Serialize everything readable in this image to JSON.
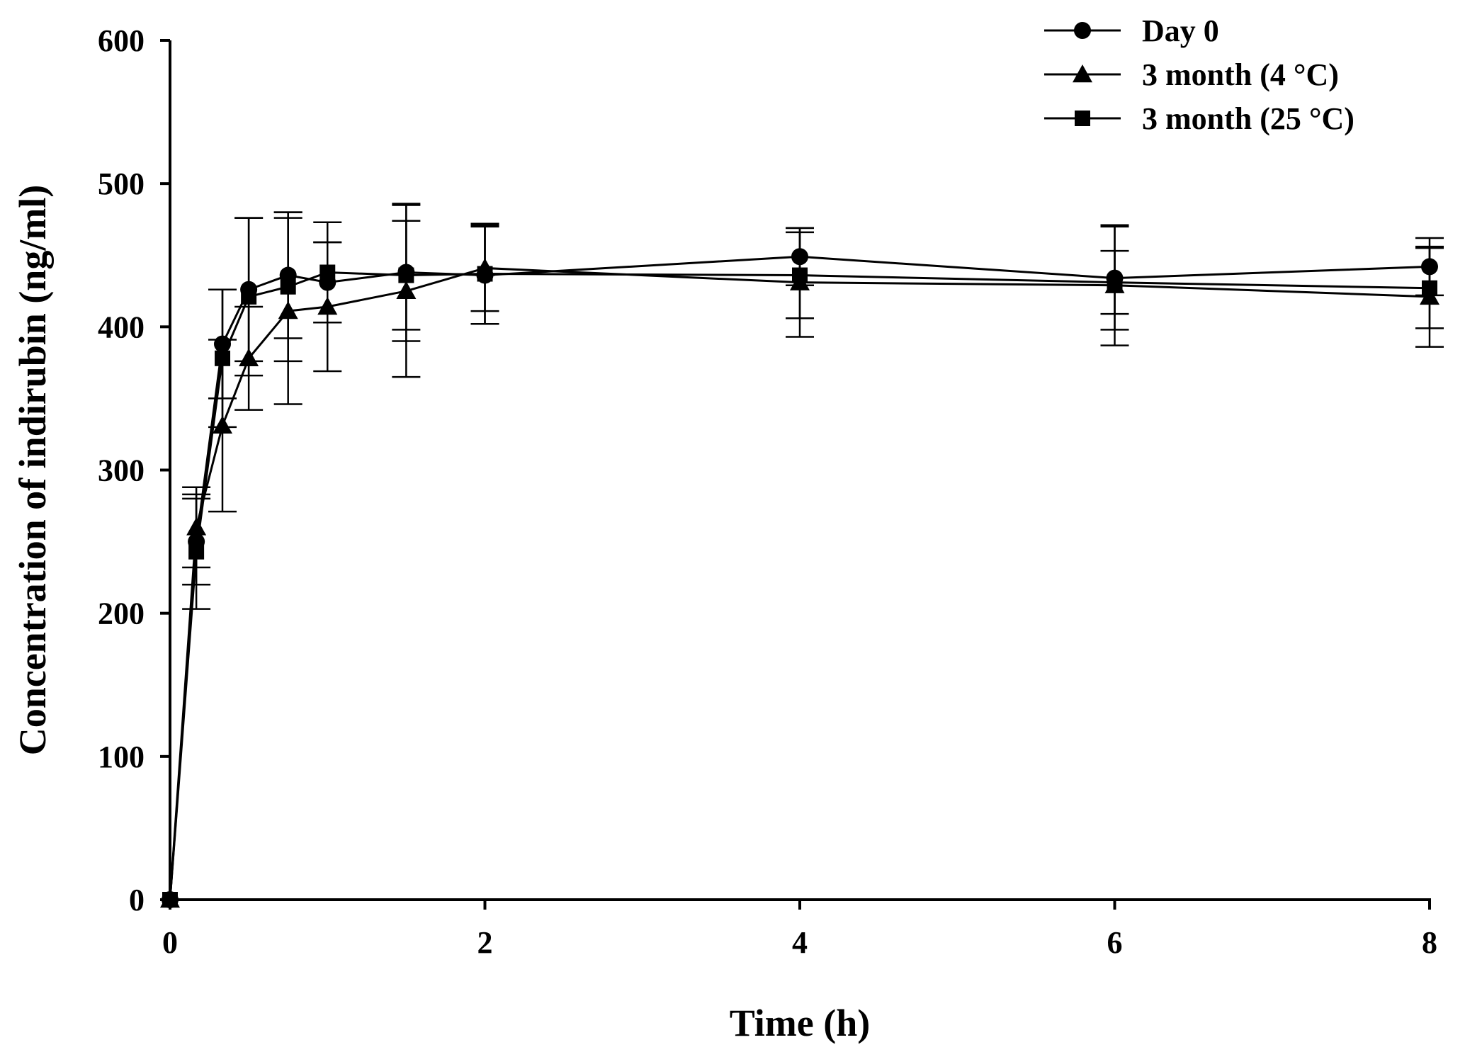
{
  "chart_data": {
    "type": "line",
    "title": "",
    "xlabel": "Time (h)",
    "ylabel": "Concentration of indirubin (ng/ml)",
    "xlim": [
      0,
      8
    ],
    "ylim": [
      0,
      600
    ],
    "x_ticks": [
      0,
      2,
      4,
      6,
      8
    ],
    "x_tick_labels": [
      "0",
      "2",
      "4",
      "6",
      "8"
    ],
    "y_ticks": [
      0,
      100,
      200,
      300,
      400,
      500,
      600
    ],
    "y_tick_labels": [
      "0",
      "100",
      "200",
      "300",
      "400",
      "500",
      "600"
    ],
    "grid": false,
    "legend_position": "top-right",
    "x": [
      0,
      0.167,
      0.333,
      0.5,
      0.75,
      1,
      1.5,
      2,
      4,
      6,
      8
    ],
    "series": [
      {
        "name": "Day 0",
        "marker": "circle",
        "values": [
          0,
          250,
          388,
          426,
          436,
          431,
          438,
          436,
          449,
          434,
          442
        ],
        "error": [
          0,
          30,
          38,
          50,
          44,
          28,
          48,
          34,
          20,
          36,
          20
        ]
      },
      {
        "name": "3 month (4 °C)",
        "marker": "triangle",
        "values": [
          0,
          260,
          331,
          378,
          411,
          414,
          425,
          441,
          431,
          429,
          421
        ],
        "error": [
          0,
          28,
          60,
          36,
          65,
          45,
          60,
          30,
          38,
          42,
          35
        ]
      },
      {
        "name": "3 month (25 °C)",
        "marker": "square",
        "values": [
          0,
          243,
          378,
          421,
          428,
          438,
          436,
          437,
          436,
          431,
          427
        ],
        "error": [
          0,
          40,
          48,
          55,
          52,
          35,
          38,
          35,
          30,
          22,
          28
        ]
      }
    ]
  }
}
